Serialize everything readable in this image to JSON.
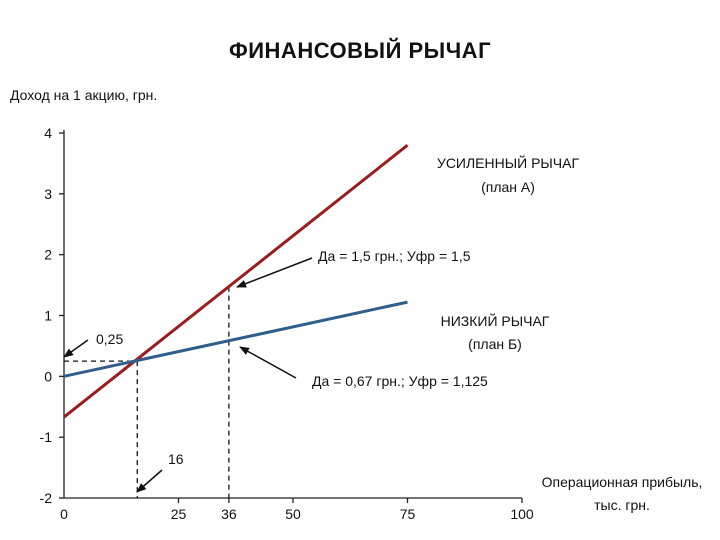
{
  "title": "ФИНАНСОВЫЙ  РЫЧАГ",
  "colors": {
    "plan_a": "#9b1c1c",
    "plan_b": "#2f5e8c",
    "axis": "#222222"
  },
  "chart_data": {
    "type": "line",
    "title": "ФИНАНСОВЫЙ  РЫЧАГ",
    "ylabel": "Доход на 1 акцию, грн.",
    "xlabel_line1": "Операционная прибыль,",
    "xlabel_line2": "тыс. грн.",
    "xlim": [
      0,
      100
    ],
    "ylim": [
      -2,
      4
    ],
    "x_ticks": [
      "0",
      "25",
      "36",
      "50",
      "75",
      "100"
    ],
    "y_ticks": [
      "4",
      "3",
      "2",
      "1",
      "0",
      "-1",
      "-2"
    ],
    "grid": false,
    "series": [
      {
        "key": "plan_a",
        "name_line1": "УСИЛЕННЫЙ РЫЧАГ",
        "name_line2": "(план А)",
        "points": [
          [
            0,
            -0.67
          ],
          [
            75,
            3.8
          ]
        ]
      },
      {
        "key": "plan_b",
        "name_line1": "НИЗКИЙ РЫЧАГ",
        "name_line2": "(план Б)",
        "points": [
          [
            0,
            0.0
          ],
          [
            75,
            1.22
          ]
        ]
      }
    ],
    "intersection": {
      "x": 16,
      "y": 0.25
    },
    "marker_x": 36,
    "annotations": {
      "plan_a": "Да = 1,5 грн.;  Уфр = 1,5",
      "plan_b": "Да = 0,67 грн.;  Уфр = 1,125",
      "intersection_y_label": "0,25",
      "intersection_x_label": "16"
    }
  }
}
